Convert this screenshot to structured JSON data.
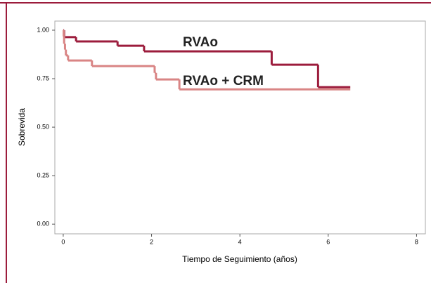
{
  "chart_data": {
    "type": "step",
    "xlabel": "Tiempo de Seguimiento (años)",
    "ylabel": "Sobrevida",
    "xlim": [
      -0.19,
      8.2
    ],
    "ylim": [
      -0.05,
      1.047
    ],
    "xticks": [
      0,
      2,
      4,
      6,
      8
    ],
    "yticks": [
      {
        "value": 0,
        "label": "0.00"
      },
      {
        "value": 0.25,
        "label": "0.25"
      },
      {
        "value": 0.5,
        "label": "0.50"
      },
      {
        "value": 0.75,
        "label": "0.75"
      },
      {
        "value": 1,
        "label": "1.00"
      }
    ],
    "series": [
      {
        "name": "RVAo",
        "color": "#9c1c3c",
        "x": [
          0,
          0.02,
          0.29,
          1.23,
          1.83,
          4.72,
          5.77,
          6.5
        ],
        "values": [
          1.0,
          0.964,
          0.942,
          0.92,
          0.891,
          0.822,
          0.706,
          0.706
        ]
      },
      {
        "name": "RVAo + CRM",
        "color": "#d98585",
        "x": [
          0,
          0.01,
          0.02,
          0.04,
          0.06,
          0.11,
          0.65,
          2.07,
          2.1,
          2.63,
          6.5
        ],
        "values": [
          1.0,
          0.97,
          0.93,
          0.9,
          0.87,
          0.844,
          0.815,
          0.78,
          0.746,
          0.695,
          0.695
        ]
      }
    ]
  }
}
